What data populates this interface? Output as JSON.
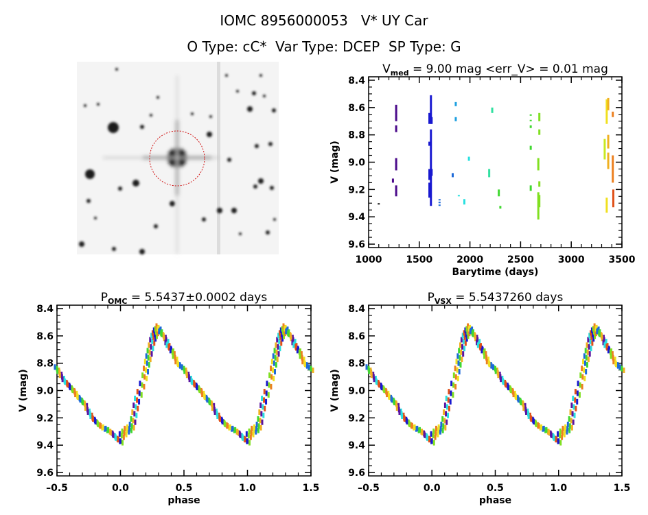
{
  "header": {
    "title": "IOMC 8956000053   V* UY Car",
    "subtitle": "O Type: cC*  Var Type: DCEP  SP Type: G"
  },
  "colors": {
    "palette": [
      "#111111",
      "#4b0a8a",
      "#5a14a0",
      "#1818d0",
      "#1e6ad8",
      "#1ea0e0",
      "#28e0e0",
      "#30e0a0",
      "#40d830",
      "#80e020",
      "#c8e820",
      "#f0e020",
      "#f0b020",
      "#ec8020",
      "#e05018"
    ],
    "frame": "#000000",
    "aperture": "#d01010"
  },
  "chart_data": [
    {
      "type": "image",
      "panel": "sky-thumbnail"
    },
    {
      "type": "scatter",
      "panel": "time-series",
      "title_main": "V",
      "title_sub": "med",
      "title_rest": " = 9.00 mag <err_V> = 0.01 mag",
      "xlabel": "Barytime (days)",
      "ylabel": "V (mag)",
      "xlim": [
        1000,
        3500
      ],
      "ylim": [
        8.375,
        9.625
      ],
      "y_inverted": true,
      "xticks": [
        "1000",
        "1500",
        "2000",
        "2500",
        "3000",
        "3500"
      ],
      "yticks": [
        "8.4",
        "8.6",
        "8.8",
        "9.0",
        "9.2",
        "9.4",
        "9.6"
      ],
      "groups": [
        {
          "t": 1100,
          "c": 0,
          "v": [
            [
              9.3,
              9.31
            ]
          ]
        },
        {
          "t": 1240,
          "c": 1,
          "v": [
            [
              9.12,
              9.15
            ]
          ]
        },
        {
          "t": 1272,
          "c": 1,
          "v": [
            [
              8.58,
              8.7
            ],
            [
              8.73,
              8.78
            ],
            [
              8.97,
              9.06
            ],
            [
              9.17,
              9.25
            ]
          ]
        },
        {
          "t": 1600,
          "c": 3,
          "v": [
            [
              8.64,
              8.72
            ],
            [
              8.85,
              8.88
            ],
            [
              9.05,
              9.13
            ],
            [
              9.15,
              9.26
            ]
          ]
        },
        {
          "t": 1615,
          "c": 3,
          "v": [
            [
              8.51,
              8.72
            ],
            [
              8.76,
              9.32
            ]
          ]
        },
        {
          "t": 1622,
          "c": 3,
          "v": [
            [
              8.67,
              8.72
            ],
            [
              9.05,
              9.1
            ]
          ]
        },
        {
          "t": 1700,
          "c": 4,
          "v": [
            [
              9.27,
              9.28
            ],
            [
              9.29,
              9.3
            ],
            [
              9.31,
              9.32
            ]
          ]
        },
        {
          "t": 1830,
          "c": 4,
          "v": [
            [
              9.08,
              9.11
            ]
          ]
        },
        {
          "t": 1860,
          "c": 5,
          "v": [
            [
              8.56,
              8.59
            ],
            [
              8.67,
              8.7
            ]
          ]
        },
        {
          "t": 1890,
          "c": 6,
          "v": [
            [
              9.24,
              9.25
            ]
          ]
        },
        {
          "t": 1945,
          "c": 6,
          "v": [
            [
              9.27,
              9.31
            ]
          ]
        },
        {
          "t": 1990,
          "c": 6,
          "v": [
            [
              8.96,
              8.99
            ]
          ]
        },
        {
          "t": 2190,
          "c": 7,
          "v": [
            [
              9.05,
              9.11
            ]
          ]
        },
        {
          "t": 2220,
          "c": 7,
          "v": [
            [
              8.6,
              8.64
            ]
          ]
        },
        {
          "t": 2285,
          "c": 8,
          "v": [
            [
              9.2,
              9.25
            ]
          ]
        },
        {
          "t": 2300,
          "c": 8,
          "v": [
            [
              9.32,
              9.34
            ]
          ]
        },
        {
          "t": 2600,
          "c": 8,
          "v": [
            [
              8.65,
              8.66
            ],
            [
              8.69,
              8.7
            ],
            [
              8.73,
              8.75
            ],
            [
              8.88,
              8.91
            ],
            [
              9.17,
              9.21
            ]
          ]
        },
        {
          "t": 2675,
          "c": 9,
          "v": [
            [
              8.97,
              9.06
            ],
            [
              9.22,
              9.42
            ]
          ]
        },
        {
          "t": 2685,
          "c": 9,
          "v": [
            [
              8.64,
              8.7
            ],
            [
              8.76,
              8.8
            ],
            [
              9.14,
              9.18
            ],
            [
              9.24,
              9.33
            ]
          ]
        },
        {
          "t": 3330,
          "c": 10,
          "v": [
            [
              8.83,
              8.98
            ]
          ]
        },
        {
          "t": 3350,
          "c": 11,
          "v": [
            [
              8.54,
              8.72
            ],
            [
              9.26,
              9.37
            ]
          ]
        },
        {
          "t": 3365,
          "c": 12,
          "v": [
            [
              8.53,
              8.62
            ],
            [
              8.8,
              8.9
            ],
            [
              8.93,
              9.05
            ]
          ]
        },
        {
          "t": 3410,
          "c": 13,
          "v": [
            [
              8.63,
              8.67
            ],
            [
              8.95,
              9.15
            ]
          ]
        },
        {
          "t": 3415,
          "c": 14,
          "v": [
            [
              9.2,
              9.33
            ]
          ]
        }
      ]
    },
    {
      "type": "scatter",
      "panel": "phase-omc",
      "title_main": "P",
      "title_sub": "OMC",
      "title_rest": " = 5.5437±0.0002 days",
      "xlabel": "phase",
      "ylabel": "V (mag)",
      "xlim": [
        -0.5,
        1.5
      ],
      "ylim": [
        8.375,
        9.625
      ],
      "y_inverted": true,
      "xticks": [
        "-0.5",
        "0.0",
        "0.5",
        "1.0",
        "1.5"
      ],
      "yticks": [
        "8.4",
        "8.6",
        "8.8",
        "9.0",
        "9.2",
        "9.4",
        "9.6"
      ]
    },
    {
      "type": "scatter",
      "panel": "phase-vsx",
      "title_main": "P",
      "title_sub": "VSX",
      "title_rest": " = 5.5437260 days",
      "xlabel": "phase",
      "ylabel": "V (mag)",
      "xlim": [
        -0.5,
        1.5
      ],
      "ylim": [
        8.375,
        9.625
      ],
      "y_inverted": true,
      "xticks": [
        "-0.5",
        "0.0",
        "0.5",
        "1.0",
        "1.5"
      ],
      "yticks": [
        "8.4",
        "8.6",
        "8.8",
        "9.0",
        "9.2",
        "9.4",
        "9.6"
      ]
    }
  ],
  "phased_points": [
    [
      0.0,
      9.37
    ],
    [
      0.01,
      9.33
    ],
    [
      0.03,
      9.31
    ],
    [
      0.05,
      9.29
    ],
    [
      0.07,
      9.28
    ],
    [
      0.09,
      9.26
    ],
    [
      0.1,
      9.22
    ],
    [
      0.11,
      9.17
    ],
    [
      0.12,
      9.12
    ],
    [
      0.13,
      9.07
    ],
    [
      0.15,
      9.02
    ],
    [
      0.17,
      8.96
    ],
    [
      0.19,
      8.9
    ],
    [
      0.2,
      8.85
    ],
    [
      0.21,
      8.8
    ],
    [
      0.22,
      8.76
    ],
    [
      0.23,
      8.72
    ],
    [
      0.24,
      8.68
    ],
    [
      0.25,
      8.64
    ],
    [
      0.26,
      8.61
    ],
    [
      0.27,
      8.59
    ],
    [
      0.28,
      8.57
    ],
    [
      0.29,
      8.56
    ],
    [
      0.3,
      8.54
    ],
    [
      0.31,
      8.56
    ],
    [
      0.32,
      8.58
    ],
    [
      0.34,
      8.6
    ],
    [
      0.36,
      8.63
    ],
    [
      0.37,
      8.66
    ],
    [
      0.38,
      8.68
    ],
    [
      0.4,
      8.7
    ],
    [
      0.41,
      8.72
    ],
    [
      0.43,
      8.76
    ],
    [
      0.45,
      8.8
    ],
    [
      0.47,
      8.82
    ],
    [
      0.5,
      8.84
    ],
    [
      0.52,
      8.87
    ],
    [
      0.54,
      8.9
    ],
    [
      0.56,
      8.93
    ],
    [
      0.58,
      8.95
    ],
    [
      0.6,
      8.97
    ],
    [
      0.62,
      8.99
    ],
    [
      0.64,
      9.01
    ],
    [
      0.66,
      9.04
    ],
    [
      0.68,
      9.06
    ],
    [
      0.7,
      9.08
    ],
    [
      0.72,
      9.1
    ],
    [
      0.74,
      9.14
    ],
    [
      0.76,
      9.17
    ],
    [
      0.78,
      9.2
    ],
    [
      0.8,
      9.22
    ],
    [
      0.82,
      9.24
    ],
    [
      0.84,
      9.26
    ],
    [
      0.86,
      9.27
    ],
    [
      0.88,
      9.28
    ],
    [
      0.9,
      9.29
    ],
    [
      0.92,
      9.3
    ],
    [
      0.94,
      9.32
    ],
    [
      0.96,
      9.34
    ],
    [
      0.98,
      9.36
    ]
  ]
}
